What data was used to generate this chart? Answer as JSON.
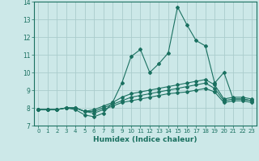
{
  "title": "",
  "xlabel": "Humidex (Indice chaleur)",
  "background_color": "#cce8e8",
  "grid_color": "#aacccc",
  "line_color": "#1a7060",
  "xlim": [
    -0.5,
    23.5
  ],
  "ylim": [
    7,
    14
  ],
  "xticks": [
    0,
    1,
    2,
    3,
    4,
    5,
    6,
    7,
    8,
    9,
    10,
    11,
    12,
    13,
    14,
    15,
    16,
    17,
    18,
    19,
    20,
    21,
    22,
    23
  ],
  "yticks": [
    7,
    8,
    9,
    10,
    11,
    12,
    13,
    14
  ],
  "series": [
    [
      7.9,
      7.9,
      7.9,
      8.0,
      7.9,
      7.6,
      7.5,
      7.7,
      8.3,
      9.4,
      10.9,
      11.3,
      10.0,
      10.5,
      11.1,
      13.7,
      12.7,
      11.8,
      11.5,
      9.4,
      10.0,
      8.5,
      8.5,
      8.4
    ],
    [
      7.9,
      7.9,
      7.9,
      8.0,
      8.0,
      7.8,
      7.9,
      8.1,
      8.3,
      8.6,
      8.8,
      8.9,
      9.0,
      9.1,
      9.2,
      9.3,
      9.4,
      9.5,
      9.6,
      9.3,
      8.5,
      8.6,
      8.6,
      8.5
    ],
    [
      7.9,
      7.9,
      7.9,
      8.0,
      8.0,
      7.8,
      7.8,
      8.0,
      8.2,
      8.4,
      8.6,
      8.7,
      8.8,
      8.9,
      9.0,
      9.1,
      9.2,
      9.3,
      9.4,
      9.1,
      8.4,
      8.5,
      8.5,
      8.4
    ],
    [
      7.9,
      7.9,
      7.9,
      8.0,
      8.0,
      7.8,
      7.7,
      7.9,
      8.1,
      8.3,
      8.4,
      8.5,
      8.6,
      8.7,
      8.8,
      8.85,
      8.9,
      9.0,
      9.1,
      8.9,
      8.3,
      8.4,
      8.4,
      8.3
    ]
  ]
}
